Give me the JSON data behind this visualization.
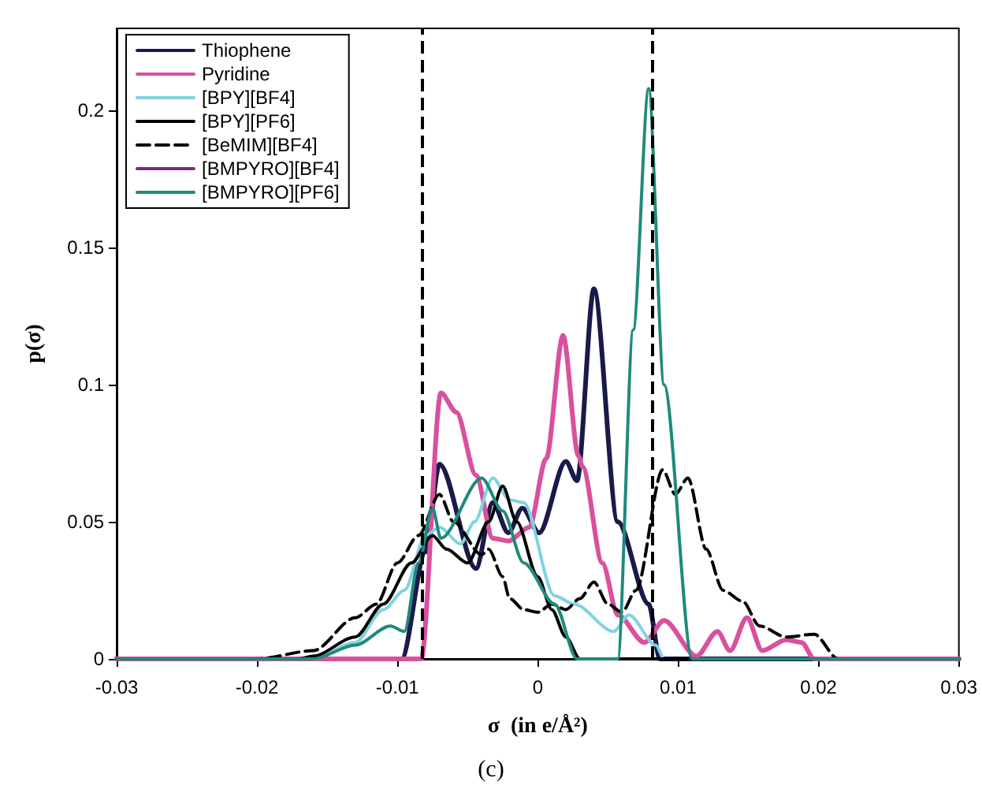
{
  "chart_data": {
    "type": "line",
    "xlabel": "σ  (in e/Å²)",
    "ylabel": "p(σ)",
    "annotations": [
      "(c)"
    ],
    "xlim": [
      -0.03,
      0.03
    ],
    "xticks": [
      -0.03,
      -0.02,
      -0.01,
      0,
      0.01,
      0.02,
      0.03
    ],
    "ylim": [
      0,
      0.23
    ],
    "yticks": [
      0,
      0.05,
      0.1,
      0.15,
      0.2
    ],
    "grid": false,
    "legend": "top left",
    "marker": "none",
    "line_style": "solid",
    "ref_lines": [
      {
        "axis": "x",
        "value": -0.0082,
        "color": "#000000",
        "line_style": "dashed"
      },
      {
        "axis": "x",
        "value": 0.0082,
        "color": "#000000",
        "line_style": "dashed"
      }
    ],
    "series": [
      {
        "name": "Thiophene",
        "color": "#1a1a4a",
        "x": [
          -0.03,
          -0.0097,
          -0.008,
          -0.007,
          -0.0044,
          -0.0032,
          -0.0021,
          -0.0011,
          0.0001,
          0.002,
          0.0028,
          0.004,
          0.0057,
          0.0079,
          0.0087,
          0.03
        ],
        "values": [
          0,
          0,
          0.039,
          0.071,
          0.033,
          0.057,
          0.046,
          0.055,
          0.046,
          0.072,
          0.065,
          0.135,
          0.05,
          0.02,
          0,
          0
        ]
      },
      {
        "name": "Pyridine",
        "color": "#d9509e",
        "x": [
          -0.03,
          -0.0083,
          -0.0069,
          -0.0058,
          -0.0044,
          -0.0032,
          -0.0021,
          -0.0006,
          0.0006,
          0.0018,
          0.0029,
          0.0032,
          0.0046,
          0.0057,
          0.0076,
          0.009,
          0.0113,
          0.0128,
          0.0137,
          0.0149,
          0.016,
          0.0177,
          0.0188,
          0.0197,
          0.03
        ],
        "values": [
          0,
          0,
          0.097,
          0.09,
          0.067,
          0.044,
          0.043,
          0.048,
          0.073,
          0.118,
          0.074,
          0.07,
          0.035,
          0.016,
          0.006,
          0.014,
          0.001,
          0.01,
          0.003,
          0.015,
          0.003,
          0.007,
          0.006,
          0,
          0
        ]
      },
      {
        "name": "[BPY][BF4]",
        "color": "#7fd3e0",
        "x": [
          -0.03,
          -0.016,
          -0.013,
          -0.011,
          -0.0095,
          -0.008,
          -0.007,
          -0.0055,
          -0.0045,
          -0.0032,
          -0.002,
          -0.001,
          0.0012,
          0.0026,
          0.0054,
          0.0065,
          0.0084,
          0.009,
          0.03
        ],
        "values": [
          0,
          0,
          0.006,
          0.018,
          0.025,
          0.045,
          0.048,
          0.042,
          0.05,
          0.066,
          0.058,
          0.057,
          0.023,
          0.02,
          0.01,
          0.016,
          0.005,
          0,
          0
        ]
      },
      {
        "name": "[BPY][PF6]",
        "color": "#000000",
        "x": [
          -0.03,
          -0.017,
          -0.016,
          -0.013,
          -0.011,
          -0.009,
          -0.0075,
          -0.0065,
          -0.005,
          -0.0035,
          -0.0025,
          -0.0015,
          0,
          0.001,
          0.002,
          0.003,
          0.03
        ],
        "values": [
          0,
          0,
          0.001,
          0.008,
          0.02,
          0.035,
          0.045,
          0.04,
          0.035,
          0.05,
          0.063,
          0.05,
          0.03,
          0.018,
          0.008,
          0,
          0
        ]
      },
      {
        "name": "[BeMIM][BF4]",
        "color": "#000000",
        "line_style": "dashed",
        "x": [
          -0.03,
          -0.02,
          -0.016,
          -0.013,
          -0.0115,
          -0.01,
          -0.0085,
          -0.007,
          -0.006,
          -0.004,
          -0.0035,
          -0.0025,
          -0.002,
          -0.001,
          0,
          0.001,
          0.002,
          0.003,
          0.004,
          0.005,
          0.006,
          0.007,
          0.0089,
          0.0098,
          0.0107,
          0.012,
          0.0132,
          0.0146,
          0.0158,
          0.0177,
          0.0197,
          0.0214,
          0.03
        ],
        "values": [
          0,
          0,
          0.003,
          0.015,
          0.02,
          0.035,
          0.045,
          0.06,
          0.05,
          0.038,
          0.04,
          0.03,
          0.022,
          0.018,
          0.017,
          0.02,
          0.018,
          0.022,
          0.028,
          0.02,
          0.017,
          0.025,
          0.069,
          0.06,
          0.066,
          0.04,
          0.025,
          0.021,
          0.012,
          0.008,
          0.009,
          0,
          0
        ]
      },
      {
        "name": "[BMPYRO][BF4]",
        "color": "#7b2d7b"
      },
      {
        "name": "[BMPYRO][PF6]",
        "color": "#1f8a7a",
        "x": [
          -0.03,
          -0.016,
          -0.013,
          -0.0105,
          -0.0095,
          -0.0085,
          -0.0075,
          -0.0069,
          -0.004,
          -0.0025,
          -0.001,
          0.0012,
          0.0028,
          0.0057,
          0.0068,
          0.0079,
          0.009,
          0.011,
          0.03
        ],
        "values": [
          0,
          0,
          0.005,
          0.012,
          0.01,
          0.035,
          0.055,
          0.044,
          0.066,
          0.054,
          0.035,
          0.02,
          0,
          0,
          0.12,
          0.208,
          0.1,
          0,
          0
        ]
      }
    ]
  }
}
